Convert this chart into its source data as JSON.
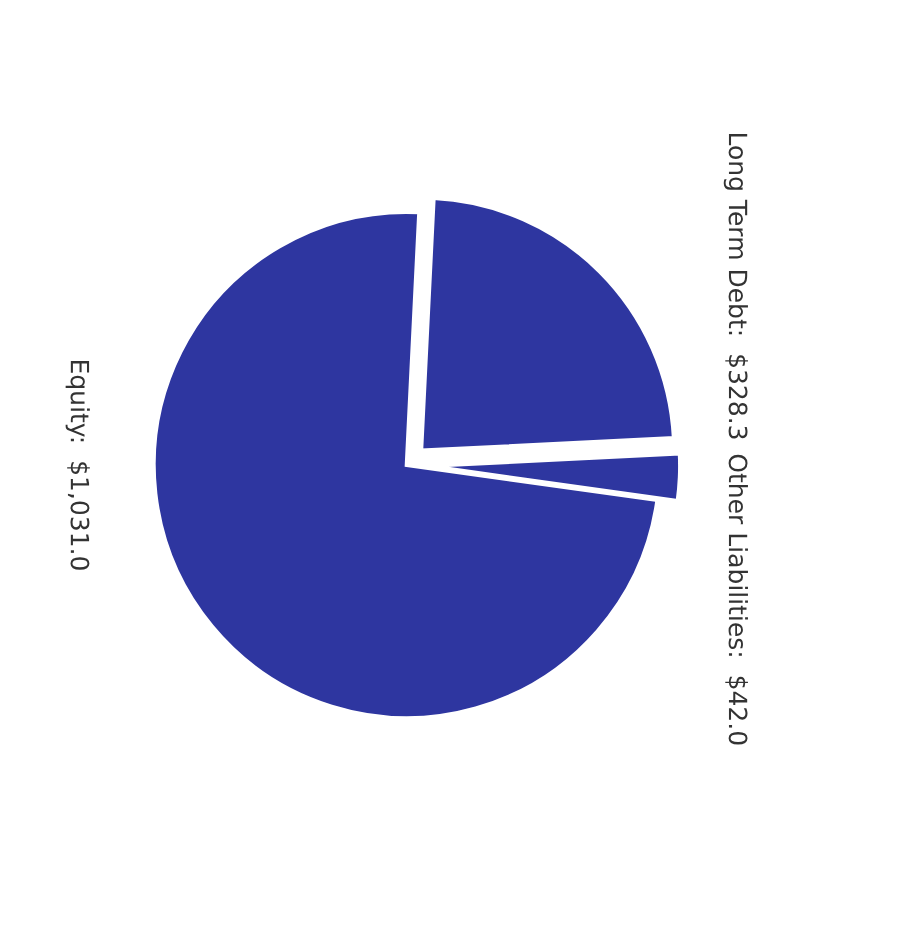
{
  "chart_data": {
    "type": "pie",
    "categories": [
      "Equity",
      "Long Term Debt",
      "Other Liabilities"
    ],
    "values": [
      1031.0,
      328.3,
      42.0
    ],
    "value_labels": [
      "$1,031.0",
      "$328.3",
      "$42.0"
    ],
    "colors": [
      "#2e36a0",
      "#2e36a0",
      "#2e36a0"
    ]
  }
}
